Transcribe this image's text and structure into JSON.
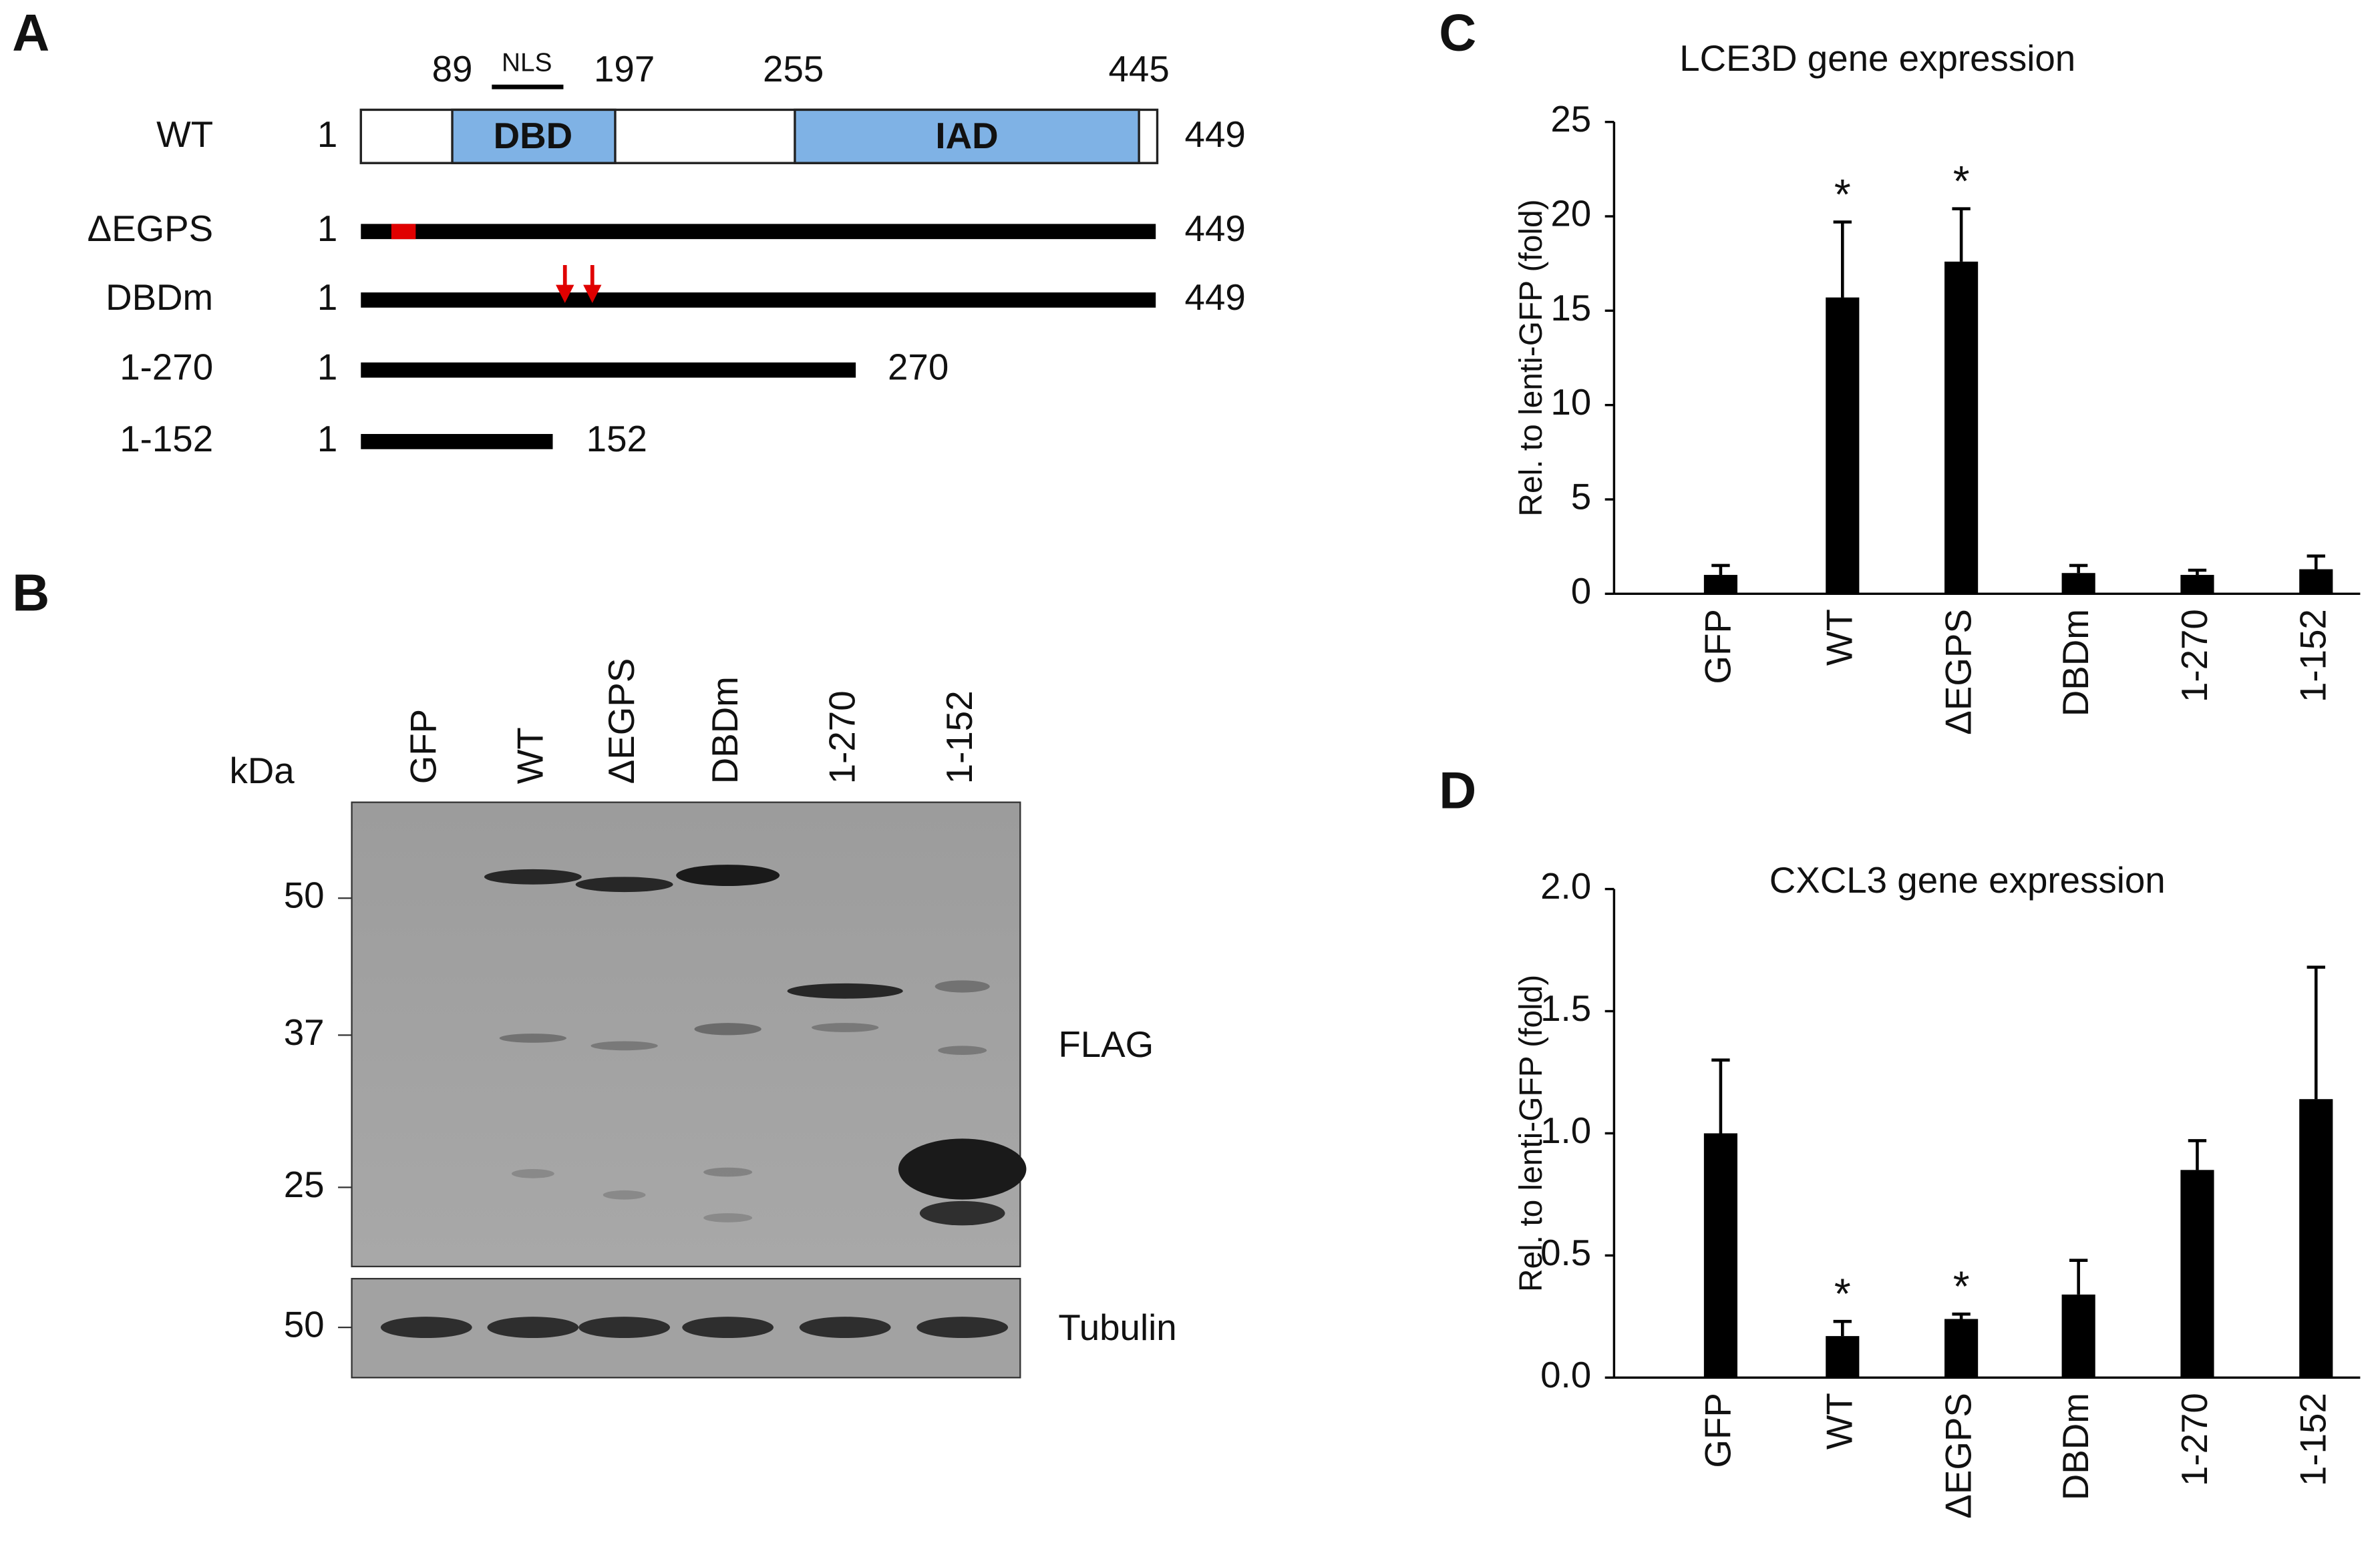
{
  "panel_labels": [
    "A",
    "B",
    "C",
    "D"
  ],
  "diagram": {
    "domain_positions": [
      89,
      197,
      255,
      445
    ],
    "nls": "NLS",
    "domains": [
      "DBD",
      "IAD"
    ],
    "constructs": [
      {
        "name": "WT",
        "start": 1,
        "end": 449
      },
      {
        "name": "ΔEGPS",
        "start": 1,
        "end": 449
      },
      {
        "name": "DBDm",
        "start": 1,
        "end": 449
      },
      {
        "name": "1-270",
        "start": 1,
        "end": 270
      },
      {
        "name": "1-152",
        "start": 1,
        "end": 152
      }
    ]
  },
  "blot": {
    "unit": "kDa",
    "lanes": [
      "GFP",
      "WT",
      "ΔEGPS",
      "DBDm",
      "1-270",
      "1-152"
    ],
    "markers": [
      50,
      37,
      25
    ],
    "tubulin_marker": 50,
    "labels": [
      "FLAG",
      "Tubulin"
    ]
  },
  "chart_data": [
    {
      "type": "bar",
      "title": "LCE3D gene expression",
      "y_label": "Rel. to lenti-GFP (fold)",
      "categories": [
        "GFP",
        "WT",
        "ΔEGPS",
        "DBDm",
        "1-270",
        "1-152"
      ],
      "values": [
        1.0,
        15.7,
        17.6,
        1.1,
        1.0,
        1.3
      ],
      "errors": [
        0.5,
        4.0,
        2.8,
        0.4,
        0.25,
        0.7
      ],
      "significance": [
        null,
        "*",
        "*",
        null,
        null,
        null
      ],
      "color": "#000000",
      "ylim": [
        0,
        25
      ],
      "yticks": [
        0,
        5,
        10,
        15,
        20,
        25
      ]
    },
    {
      "type": "bar",
      "title": "CXCL3 gene expression",
      "y_label": "Rel. to lenti-GFP (fold)",
      "categories": [
        "GFP",
        "WT",
        "ΔEGPS",
        "DBDm",
        "1-270",
        "1-152"
      ],
      "values": [
        1.0,
        0.17,
        0.24,
        0.34,
        0.85,
        1.14
      ],
      "errors": [
        0.3,
        0.06,
        0.02,
        0.14,
        0.12,
        0.54
      ],
      "significance": [
        null,
        "*",
        "*",
        null,
        null,
        null
      ],
      "color": "#000000",
      "ylim": [
        0,
        2
      ],
      "yticks": [
        {
          "value": 0,
          "label": "0.0"
        },
        0.5,
        {
          "value": 1,
          "label": "1.0"
        },
        1.5,
        {
          "value": 2,
          "label": "2.0"
        }
      ]
    }
  ]
}
